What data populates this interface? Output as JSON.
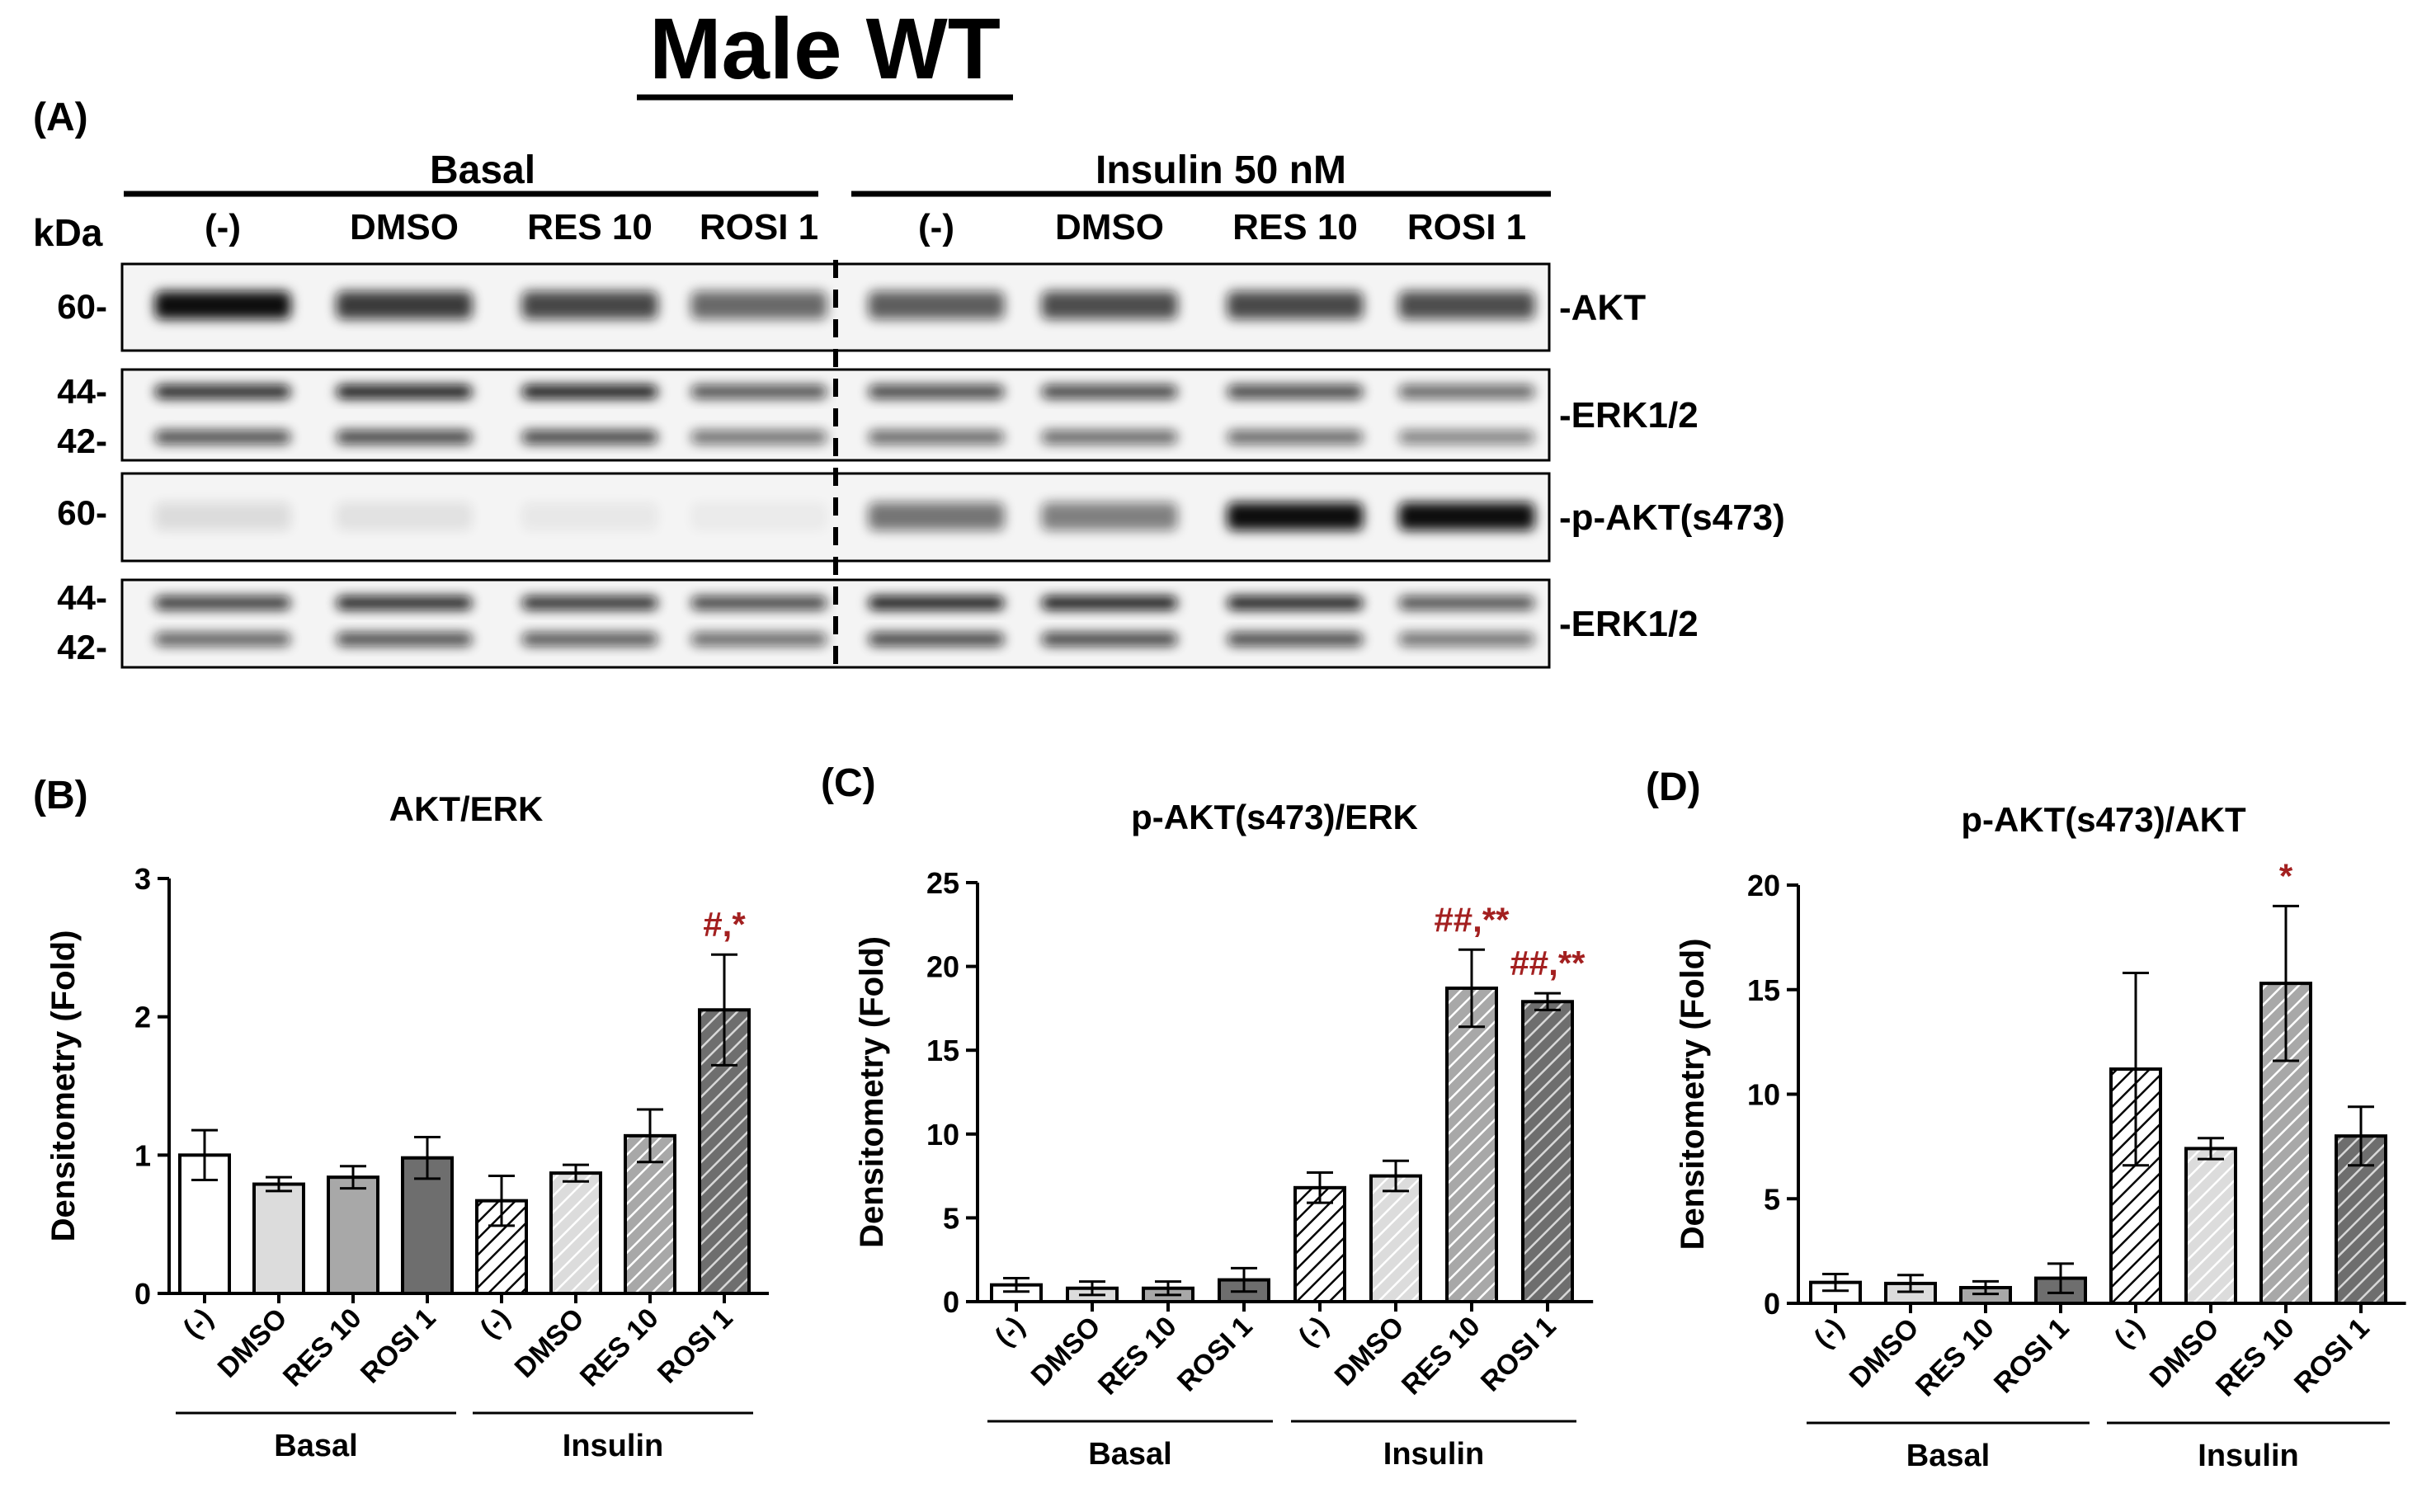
{
  "figure": {
    "title": "Male WT",
    "blot": {
      "panel_label": "(A)",
      "group_basal": "Basal",
      "group_insulin": "Insulin 50 nM",
      "kda_label": "kDa",
      "lanes": [
        "(-)",
        "DMSO",
        "RES 10",
        "ROSI 1",
        "(-)",
        "DMSO",
        "RES 10",
        "ROSI 1"
      ],
      "strips": [
        {
          "name": "-AKT",
          "markers": [
            "60-"
          ]
        },
        {
          "name": "-ERK1/2",
          "markers": [
            "44-",
            "42-"
          ]
        },
        {
          "name": "-p-AKT(s473)",
          "markers": [
            "60-"
          ]
        },
        {
          "name": "-ERK1/2",
          "markers": [
            "44-",
            "42-"
          ]
        }
      ]
    }
  },
  "chart_data": [
    {
      "panel_label": "(B)",
      "type": "bar",
      "title": "AKT/ERK",
      "ylabel": "Densitometry (Fold)",
      "ylim": [
        0,
        3
      ],
      "yticks": [
        "0",
        "1",
        "2",
        "3"
      ],
      "categories": [
        "(-)",
        "DMSO",
        "RES 10",
        "ROSI 1",
        "(-)",
        "DMSO",
        "RES 10",
        "ROSI 1"
      ],
      "groups": [
        {
          "label": "Basal",
          "span": [
            0,
            3
          ]
        },
        {
          "label": "Insulin",
          "span": [
            4,
            7
          ]
        }
      ],
      "values": [
        1.0,
        0.79,
        0.84,
        0.98,
        0.67,
        0.87,
        1.14,
        2.05
      ],
      "errors": [
        0.18,
        0.05,
        0.08,
        0.15,
        0.18,
        0.06,
        0.19,
        0.4
      ],
      "annotations": [
        {
          "index": 7,
          "text": "#,*"
        }
      ]
    },
    {
      "panel_label": "(C)",
      "type": "bar",
      "title": "p-AKT(s473)/ERK",
      "ylabel": "Densitometry (Fold)",
      "ylim": [
        0,
        25
      ],
      "yticks": [
        "0",
        "5",
        "10",
        "15",
        "20",
        "25"
      ],
      "categories": [
        "(-)",
        "DMSO",
        "RES 10",
        "ROSI 1",
        "(-)",
        "DMSO",
        "RES 10",
        "ROSI 1"
      ],
      "groups": [
        {
          "label": "Basal",
          "span": [
            0,
            3
          ]
        },
        {
          "label": "Insulin",
          "span": [
            4,
            7
          ]
        }
      ],
      "values": [
        1.0,
        0.8,
        0.8,
        1.3,
        6.8,
        7.5,
        18.7,
        17.9
      ],
      "errors": [
        0.4,
        0.4,
        0.4,
        0.7,
        0.9,
        0.9,
        2.3,
        0.5
      ],
      "annotations": [
        {
          "index": 6,
          "text": "##,**"
        },
        {
          "index": 7,
          "text": "##,**"
        }
      ]
    },
    {
      "panel_label": "(D)",
      "type": "bar",
      "title": "p-AKT(s473)/AKT",
      "ylabel": "Densitometry (Fold)",
      "ylim": [
        0,
        20
      ],
      "yticks": [
        "0",
        "5",
        "10",
        "15",
        "20"
      ],
      "categories": [
        "(-)",
        "DMSO",
        "RES 10",
        "ROSI 1",
        "(-)",
        "DMSO",
        "RES 10",
        "ROSI 1"
      ],
      "groups": [
        {
          "label": "Basal",
          "span": [
            0,
            3
          ]
        },
        {
          "label": "Insulin",
          "span": [
            4,
            7
          ]
        }
      ],
      "values": [
        1.0,
        0.95,
        0.75,
        1.2,
        11.2,
        7.4,
        15.3,
        8.0
      ],
      "errors": [
        0.4,
        0.4,
        0.3,
        0.7,
        4.6,
        0.5,
        3.7,
        1.4
      ],
      "annotations": [
        {
          "index": 6,
          "text": "*"
        }
      ]
    }
  ],
  "colors": {
    "bars": [
      "#ffffff",
      "#dcdcdc",
      "#a8a8a8",
      "#6e6e6e",
      "#ffffff",
      "#dcdcdc",
      "#a8a8a8",
      "#6e6e6e"
    ],
    "hatched": [
      false,
      false,
      false,
      false,
      true,
      true,
      true,
      true
    ],
    "annotation": "#a32020"
  }
}
